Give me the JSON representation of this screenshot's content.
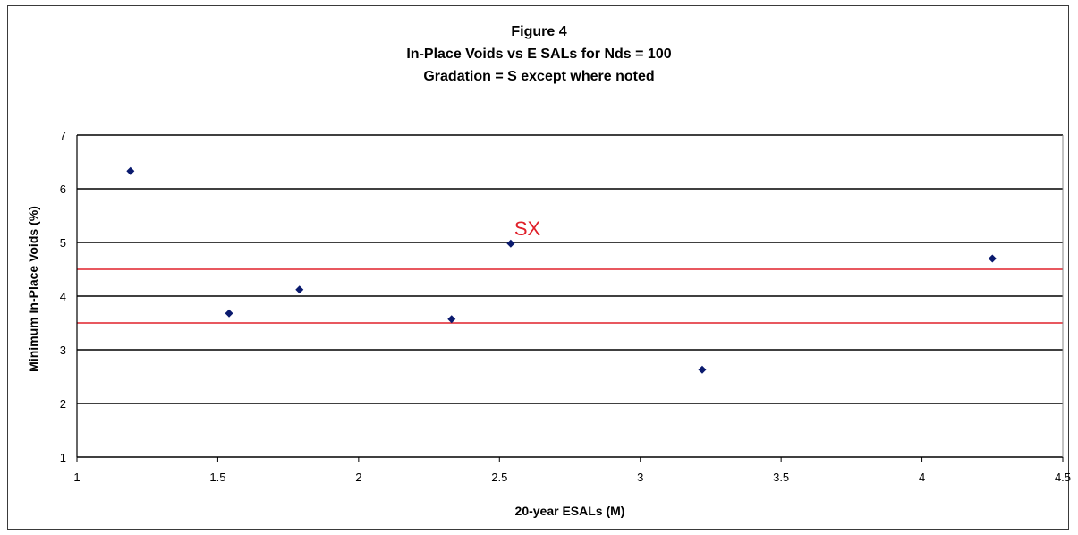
{
  "chart_data": {
    "type": "scatter",
    "title": [
      "Figure 4",
      "In-Place Voids vs E SALs for Nds = 100",
      "Gradation = S except where noted"
    ],
    "xlabel": "20-year ESALs (M)",
    "ylabel": "Minimum In-Place Voids (%)",
    "xlim": [
      1,
      4.5
    ],
    "ylim": [
      1,
      7
    ],
    "xticks": [
      "1",
      "1.5",
      "2",
      "2.5",
      "3",
      "3.5",
      "4",
      "4.5"
    ],
    "yticks": [
      "1",
      "2",
      "3",
      "4",
      "5",
      "6",
      "7"
    ],
    "grid": "horizontal",
    "series": [
      {
        "x": [
          1.19,
          1.54,
          1.79,
          2.33,
          2.54,
          3.22,
          4.25
        ],
        "y": [
          6.33,
          3.68,
          4.12,
          3.57,
          4.98,
          2.63,
          4.7
        ],
        "color": "#0a1a6e"
      }
    ],
    "reference_lines": [
      {
        "y": 4.5,
        "color": "#e0202a"
      },
      {
        "y": 3.5,
        "color": "#e0202a"
      }
    ],
    "annotations": [
      {
        "text": "SX",
        "x": 2.54,
        "y": 4.98,
        "color": "#e0202a"
      }
    ]
  }
}
